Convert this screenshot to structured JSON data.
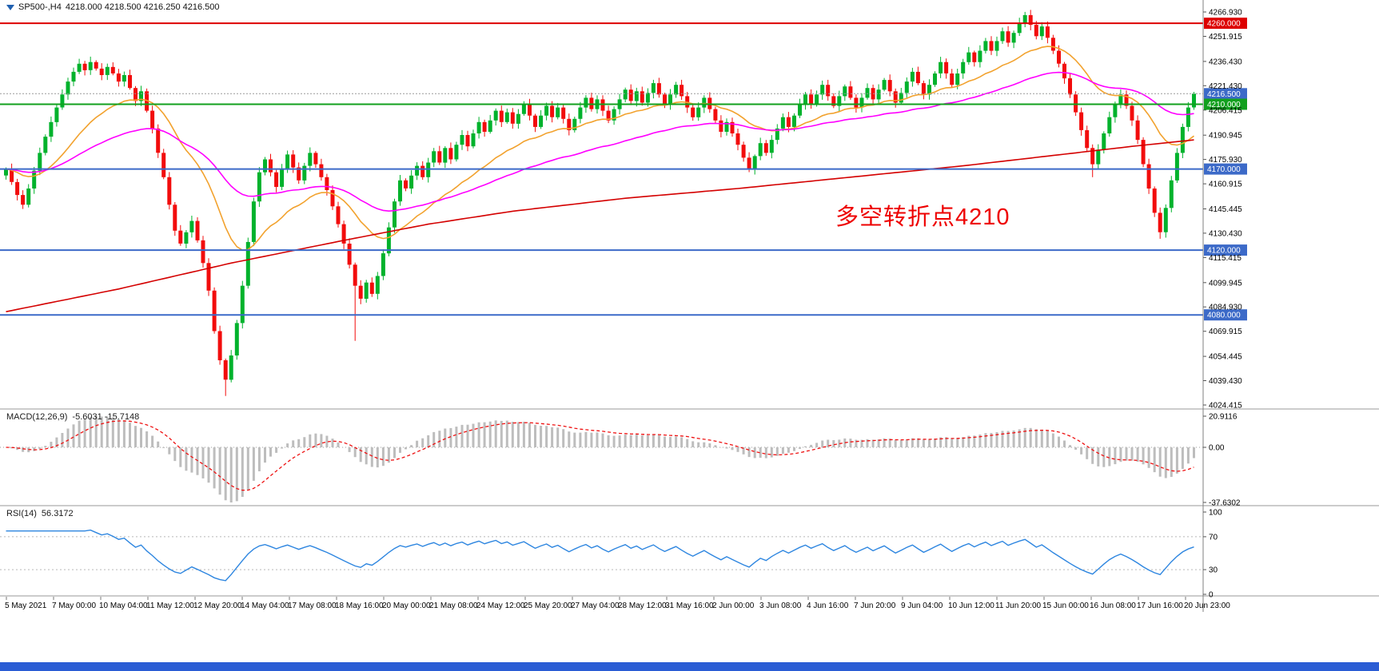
{
  "header": {
    "symbol": "SP500-,H4",
    "quote": "4218.000 4218.500 4216.250 4216.500"
  },
  "annotation": {
    "text": "多空转折点4210",
    "color": "#ee0000"
  },
  "macd_panel": {
    "label": "MACD(12,26,9)",
    "values": "-5.6031 -15.7148",
    "axis": [
      "20.9116",
      "0.00",
      "-37.6302"
    ]
  },
  "rsi_panel": {
    "label": "RSI(14)",
    "value": "56.3172",
    "axis": [
      "100",
      "70",
      "30",
      "0"
    ]
  },
  "price_axis": {
    "ticks": [
      "4266.930",
      "4251.915",
      "4236.430",
      "4221.430",
      "4206.415",
      "4190.945",
      "4175.930",
      "4160.915",
      "4145.445",
      "4130.430",
      "4115.415",
      "4099.945",
      "4084.930",
      "4069.915",
      "4054.445",
      "4039.430",
      "4024.415"
    ],
    "boxed_labels": [
      {
        "text": "4260.000",
        "price": 4260.0,
        "color": "#dd0000"
      },
      {
        "text": "4216.500",
        "price": 4216.5,
        "color": "#3c6ac8"
      },
      {
        "text": "4210.000",
        "price": 4210.0,
        "color": "#12a01e"
      },
      {
        "text": "4170.000",
        "price": 4170.0,
        "color": "#3c6ac8"
      },
      {
        "text": "4120.000",
        "price": 4120.0,
        "color": "#3c6ac8"
      },
      {
        "text": "4080.000",
        "price": 4080.0,
        "color": "#3c6ac8"
      }
    ]
  },
  "time_axis": {
    "labels": [
      "5 May 2021",
      "7 May 00:00",
      "10 May 04:00",
      "11 May 12:00",
      "12 May 20:00",
      "14 May 04:00",
      "17 May 08:00",
      "18 May 16:00",
      "20 May 00:00",
      "21 May 08:00",
      "24 May 12:00",
      "25 May 20:00",
      "27 May 04:00",
      "28 May 12:00",
      "31 May 16:00",
      "2 Jun 00:00",
      "3 Jun 08:00",
      "4 Jun 16:00",
      "7 Jun 20:00",
      "9 Jun 04:00",
      "10 Jun 12:00",
      "11 Jun 20:00",
      "15 Jun 00:00",
      "16 Jun 08:00",
      "17 Jun 16:00",
      "20 Jun 23:00"
    ]
  },
  "chart_data": {
    "type": "candlestick",
    "symbol": "SP500-",
    "timeframe": "H4",
    "quote_ohlc": {
      "open": 4218.0,
      "high": 4218.5,
      "low": 4216.25,
      "close": 4216.5
    },
    "y_range": [
      4024.415,
      4266.93
    ],
    "open_rule": "previous_close",
    "closes": [
      4170,
      4162,
      4154,
      4148,
      4158,
      4169,
      4180,
      4190,
      4199,
      4208,
      4216,
      4224,
      4230,
      4235,
      4231,
      4236,
      4232,
      4228,
      4233,
      4229,
      4224,
      4228,
      4220,
      4212,
      4218,
      4206,
      4195,
      4180,
      4165,
      4148,
      4132,
      4124,
      4131,
      4138,
      4126,
      4112,
      4095,
      4070,
      4052,
      4040,
      4055,
      4075,
      4098,
      4125,
      4150,
      4168,
      4176,
      4168,
      4159,
      4170,
      4179,
      4171,
      4163,
      4172,
      4180,
      4173,
      4165,
      4157,
      4147,
      4136,
      4124,
      4111,
      4098,
      4090,
      4100,
      4093,
      4104,
      4118,
      4134,
      4150,
      4163,
      4158,
      4166,
      4172,
      4165,
      4174,
      4181,
      4174,
      4183,
      4176,
      4185,
      4191,
      4184,
      4192,
      4199,
      4193,
      4200,
      4206,
      4199,
      4205,
      4198,
      4204,
      4210,
      4203,
      4196,
      4203,
      4209,
      4202,
      4208,
      4201,
      4194,
      4201,
      4208,
      4214,
      4207,
      4213,
      4206,
      4200,
      4207,
      4213,
      4219,
      4212,
      4218,
      4211,
      4217,
      4223,
      4216,
      4210,
      4216,
      4222,
      4215,
      4208,
      4202,
      4208,
      4214,
      4207,
      4200,
      4193,
      4199,
      4192,
      4185,
      4177,
      4170,
      4178,
      4186,
      4180,
      4188,
      4195,
      4202,
      4196,
      4203,
      4210,
      4216,
      4210,
      4216,
      4222,
      4215,
      4209,
      4215,
      4221,
      4214,
      4208,
      4214,
      4220,
      4213,
      4219,
      4225,
      4218,
      4211,
      4217,
      4224,
      4230,
      4223,
      4216,
      4222,
      4229,
      4236,
      4229,
      4222,
      4229,
      4236,
      4242,
      4236,
      4243,
      4249,
      4243,
      4249,
      4255,
      4248,
      4254,
      4260,
      4265,
      4259,
      4252,
      4258,
      4251,
      4243,
      4235,
      4226,
      4216,
      4205,
      4194,
      4183,
      4173,
      4182,
      4192,
      4202,
      4210,
      4216,
      4209,
      4200,
      4188,
      4173,
      4158,
      4143,
      4131,
      4146,
      4163,
      4180,
      4196,
      4208,
      4216.5
    ],
    "wick_overrides": {
      "39": {
        "low": 4030
      },
      "62": {
        "low": 4064
      },
      "181": {
        "high": 4267
      },
      "193": {
        "low": 4165
      },
      "205": {
        "low": 4127
      }
    },
    "h_lines": [
      {
        "price": 4260.0,
        "color": "#dd0000",
        "width": 2
      },
      {
        "price": 4216.5,
        "color": "#9a9a9a",
        "width": 1,
        "dash": "2,2"
      },
      {
        "price": 4210.0,
        "color": "#12a01e",
        "width": 2
      },
      {
        "price": 4170.0,
        "color": "#3c6ac8",
        "width": 2
      },
      {
        "price": 4120.0,
        "color": "#3c6ac8",
        "width": 2
      },
      {
        "price": 4080.0,
        "color": "#3c6ac8",
        "width": 2
      }
    ],
    "candle_up_color": "#00b22c",
    "candle_down_color": "#f20c0c",
    "moving_averages": [
      {
        "period": 21,
        "color": "#f2a22e"
      },
      {
        "period": 55,
        "color": "#ff00ff"
      }
    ],
    "long_ma_color": "#d40000",
    "long_ma_keypoints": [
      [
        0,
        4082
      ],
      [
        20,
        4096
      ],
      [
        40,
        4112
      ],
      [
        60,
        4126
      ],
      [
        75,
        4136
      ],
      [
        90,
        4144
      ],
      [
        110,
        4152
      ],
      [
        130,
        4158
      ],
      [
        150,
        4165
      ],
      [
        170,
        4172
      ],
      [
        190,
        4180
      ],
      [
        200,
        4184
      ],
      [
        211,
        4188
      ]
    ],
    "macd": {
      "fast": 12,
      "slow": 26,
      "signal": 9,
      "main_value": -5.6031,
      "signal_value": -15.7148,
      "range": [
        -37.6302,
        20.9116
      ],
      "histogram_color": "#bdbdbd",
      "signal_color": "#ee1111"
    },
    "rsi": {
      "period": 14,
      "value": 56.3172,
      "range": [
        0,
        100
      ],
      "levels": [
        70,
        30
      ],
      "color": "#2e86e0"
    }
  },
  "colors": {
    "taskbar": "#2a5cd4",
    "separator": "#999999",
    "axis_text": "#000000",
    "background": "#ffffff"
  }
}
